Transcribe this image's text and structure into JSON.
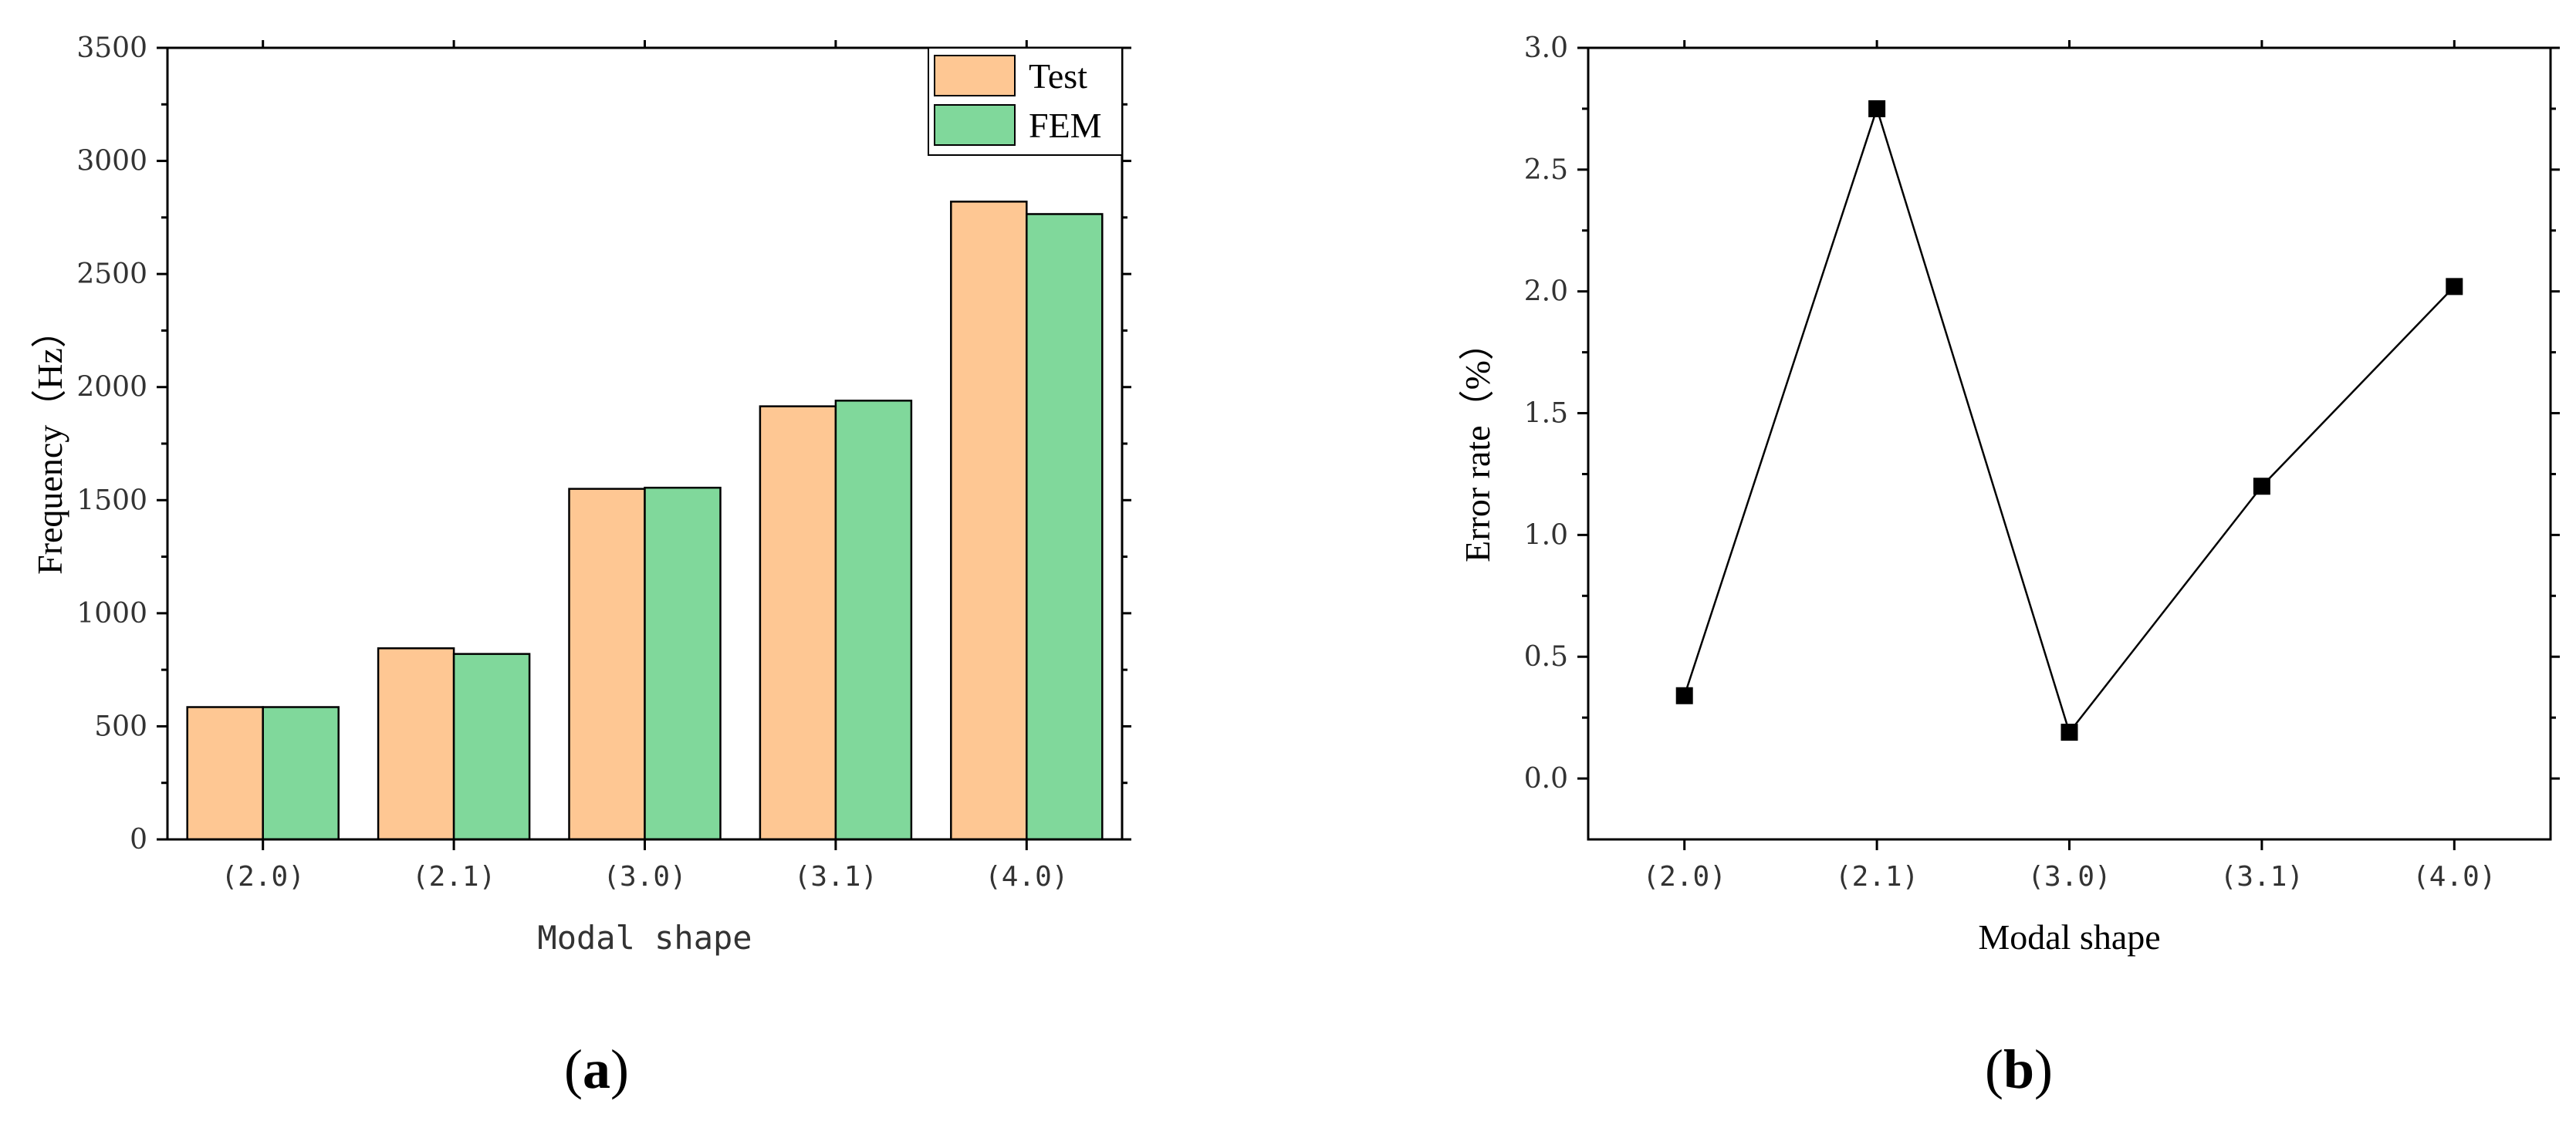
{
  "chart_data": [
    {
      "panel": "(a)",
      "type": "bar",
      "categories": [
        "(2.0)",
        "(2.1)",
        "(3.0)",
        "(3.1)",
        "(4.0)"
      ],
      "series": [
        {
          "name": "Test",
          "values": [
            585,
            845,
            1550,
            1915,
            2820
          ],
          "color": "#fec793"
        },
        {
          "name": "FEM",
          "values": [
            585,
            820,
            1555,
            1940,
            2765
          ],
          "color": "#80d89b"
        }
      ],
      "xlabel": "Modal shape",
      "ylabel": "Frequency（Hz）",
      "ylim": [
        0,
        3500
      ],
      "yticks": [
        "0",
        "500",
        "1000",
        "1500",
        "2000",
        "2500",
        "3000",
        "3500"
      ],
      "legend_position": "top-right",
      "grid": false
    },
    {
      "panel": "(b)",
      "type": "line",
      "categories": [
        "(2.0)",
        "(2.1)",
        "(3.0)",
        "(3.1)",
        "(4.0)"
      ],
      "series": [
        {
          "values": [
            0.34,
            2.75,
            0.19,
            1.2,
            2.02
          ],
          "color": "#000000"
        }
      ],
      "xlabel": "Modal shape",
      "ylabel": "Error rate（%）",
      "ylim": [
        -0.25,
        3.0
      ],
      "yticks": [
        "0.0",
        "0.5",
        "1.0",
        "1.5",
        "2.0",
        "2.5",
        "3.0"
      ],
      "marker": "square",
      "grid": false
    }
  ],
  "panel_labels": {
    "a": {
      "open": "(",
      "letter": "a",
      "close": ")"
    },
    "b": {
      "open": "(",
      "letter": "b",
      "close": ")"
    }
  }
}
